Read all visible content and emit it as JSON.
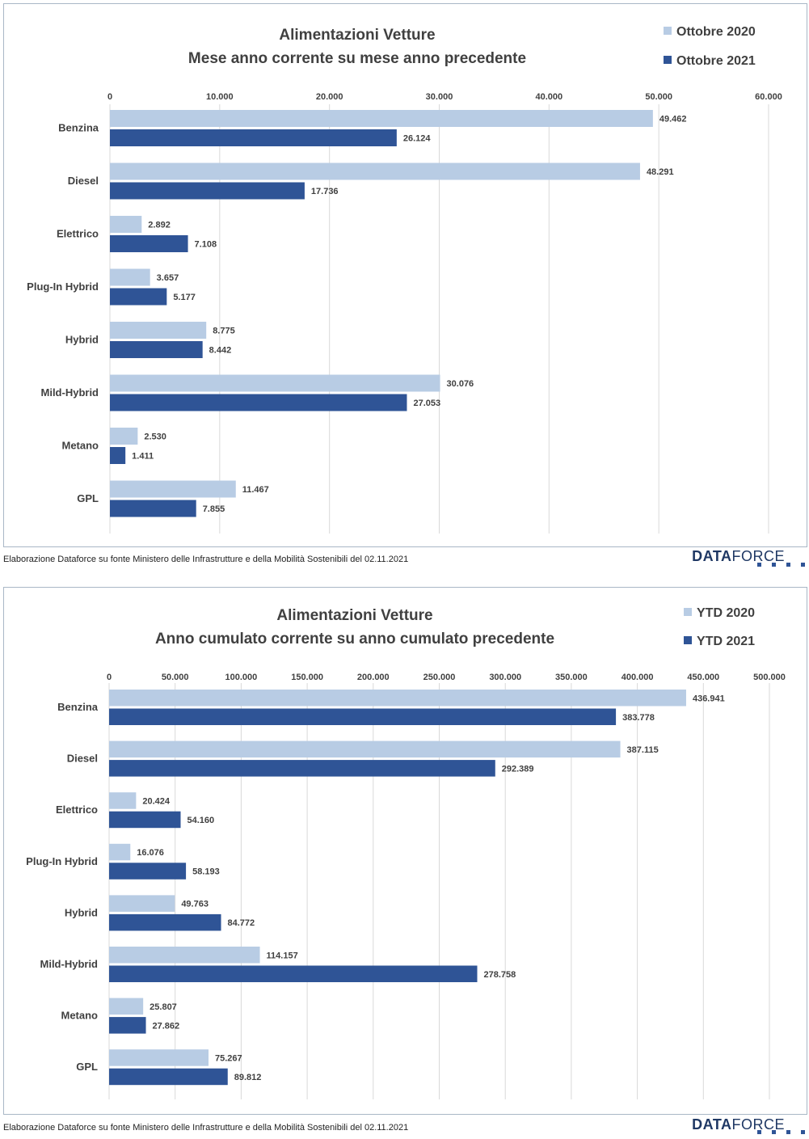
{
  "colors": {
    "light": "#b8cce4",
    "dark": "#2f5496",
    "grid": "#d9d9d9",
    "title": "#404040"
  },
  "footer_note": "Elaborazione Dataforce su fonte Ministero delle Infrastrutture e della Mobilità Sostenibili del 02.11.2021",
  "logo": {
    "bold": "DATA",
    "light": "FORCE"
  },
  "chart_data": [
    {
      "type": "bar",
      "orientation": "horizontal",
      "title": "Alimentazioni Vetture",
      "subtitle": "Mese anno corrente su mese anno precedente",
      "categories": [
        "Benzina",
        "Diesel",
        "Elettrico",
        "Plug-In Hybrid",
        "Hybrid",
        "Mild-Hybrid",
        "Metano",
        "GPL"
      ],
      "series": [
        {
          "name": "Ottobre 2020",
          "values": [
            49462,
            48291,
            2892,
            3657,
            8775,
            30076,
            2530,
            11467
          ],
          "labels": [
            "49.462",
            "48.291",
            "2.892",
            "3.657",
            "8.775",
            "30.076",
            "2.530",
            "11.467"
          ]
        },
        {
          "name": "Ottobre 2021",
          "values": [
            26124,
            17736,
            7108,
            5177,
            8442,
            27053,
            1411,
            7855
          ],
          "labels": [
            "26.124",
            "17.736",
            "7.108",
            "5.177",
            "8.442",
            "27.053",
            "1.411",
            "7.855"
          ]
        }
      ],
      "xlim": [
        0,
        60000
      ],
      "ticks": [
        0,
        10000,
        20000,
        30000,
        40000,
        50000,
        60000
      ],
      "tick_labels": [
        "0",
        "10.000",
        "20.000",
        "30.000",
        "40.000",
        "50.000",
        "60.000"
      ],
      "grid": true,
      "legend_position": "top-right"
    },
    {
      "type": "bar",
      "orientation": "horizontal",
      "title": "Alimentazioni Vetture",
      "subtitle": "Anno cumulato corrente su anno cumulato precedente",
      "categories": [
        "Benzina",
        "Diesel",
        "Elettrico",
        "Plug-In Hybrid",
        "Hybrid",
        "Mild-Hybrid",
        "Metano",
        "GPL"
      ],
      "series": [
        {
          "name": "YTD 2020",
          "values": [
            436941,
            387115,
            20424,
            16076,
            49763,
            114157,
            25807,
            75267
          ],
          "labels": [
            "436.941",
            "387.115",
            "20.424",
            "16.076",
            "49.763",
            "114.157",
            "25.807",
            "75.267"
          ]
        },
        {
          "name": "YTD 2021",
          "values": [
            383778,
            292389,
            54160,
            58193,
            84772,
            278758,
            27862,
            89812
          ],
          "labels": [
            "383.778",
            "292.389",
            "54.160",
            "58.193",
            "84.772",
            "278.758",
            "27.862",
            "89.812"
          ]
        }
      ],
      "xlim": [
        0,
        500000
      ],
      "ticks": [
        0,
        50000,
        100000,
        150000,
        200000,
        250000,
        300000,
        350000,
        400000,
        450000,
        500000
      ],
      "tick_labels": [
        "0",
        "50.000",
        "100.000",
        "150.000",
        "200.000",
        "250.000",
        "300.000",
        "350.000",
        "400.000",
        "450.000",
        "500.000"
      ],
      "grid": true,
      "legend_position": "top-right"
    }
  ]
}
